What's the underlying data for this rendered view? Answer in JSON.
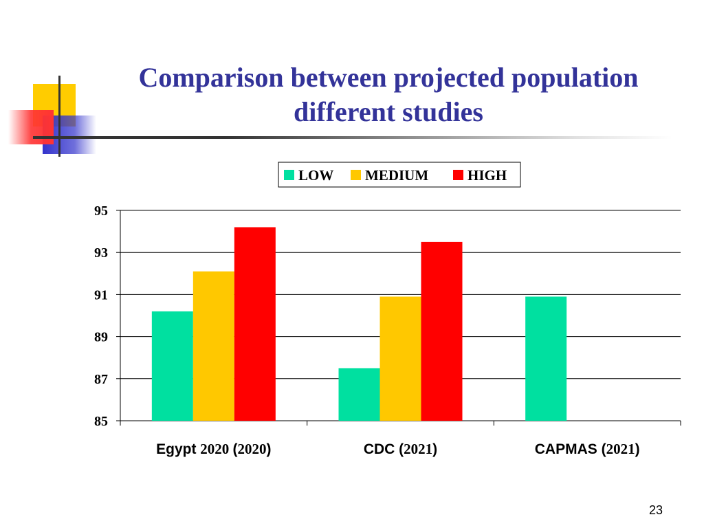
{
  "slide": {
    "title_lines": [
      "Comparison between  projected population",
      "different studies"
    ],
    "page_number": "23",
    "colors": {
      "title": "#333399"
    }
  },
  "chart_data": {
    "type": "bar",
    "title": "",
    "xlabel": "",
    "ylabel": "",
    "categories": [
      {
        "name": "Egypt",
        "year_a": "2020",
        "year_b": "2020"
      },
      {
        "name": "CDC",
        "year_b": "2021"
      },
      {
        "name": "CAPMAS",
        "year_b": "2021"
      }
    ],
    "series": [
      {
        "name": "LOW",
        "color": "#00E0A0",
        "values": [
          90.2,
          87.5,
          90.9
        ]
      },
      {
        "name": "MEDIUM",
        "color": "#FFC800",
        "values": [
          92.1,
          90.9,
          null
        ]
      },
      {
        "name": "HIGH",
        "color": "#FF0000",
        "values": [
          94.2,
          93.5,
          null
        ]
      }
    ],
    "ylim": [
      85,
      95
    ],
    "yticks": [
      "95",
      "93",
      "91",
      "89",
      "87",
      "85"
    ],
    "grid": true,
    "legend_position": "top-center"
  }
}
